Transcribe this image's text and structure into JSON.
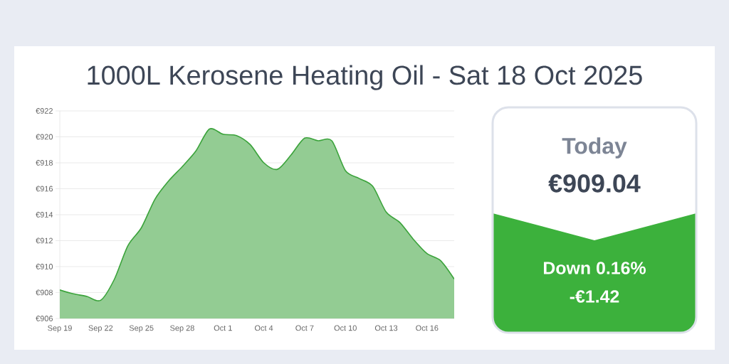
{
  "chart_data": [
    {
      "type": "area",
      "title": "1000L Kerosene Heating Oil - Sat 18 Oct 2025",
      "x": [
        "2025-09-19",
        "2025-09-20",
        "2025-09-21",
        "2025-09-22",
        "2025-09-23",
        "2025-09-24",
        "2025-09-25",
        "2025-09-26",
        "2025-09-27",
        "2025-09-28",
        "2025-09-29",
        "2025-09-30",
        "2025-10-01",
        "2025-10-02",
        "2025-10-03",
        "2025-10-04",
        "2025-10-05",
        "2025-10-06",
        "2025-10-07",
        "2025-10-08",
        "2025-10-09",
        "2025-10-10",
        "2025-10-11",
        "2025-10-12",
        "2025-10-13",
        "2025-10-14",
        "2025-10-15",
        "2025-10-16",
        "2025-10-17",
        "2025-10-18"
      ],
      "values": [
        908.2,
        907.9,
        907.7,
        907.4,
        909.0,
        911.6,
        913.0,
        915.2,
        916.6,
        917.7,
        918.9,
        920.6,
        920.2,
        920.1,
        919.4,
        918.0,
        917.5,
        918.6,
        919.9,
        919.7,
        919.7,
        917.4,
        916.8,
        916.2,
        914.2,
        913.4,
        912.1,
        911.0,
        910.46,
        909.04
      ],
      "color": "#3ba33b",
      "xlim": [
        "2025-09-19",
        "2025-10-18"
      ],
      "xticks": [
        {
          "value": "2025-09-19",
          "label": "Sep 19"
        },
        {
          "value": "2025-09-22",
          "label": "Sep 22"
        },
        {
          "value": "2025-09-25",
          "label": "Sep 25"
        },
        {
          "value": "2025-09-28",
          "label": "Sep 28"
        },
        {
          "value": "2025-10-01",
          "label": "Oct 1"
        },
        {
          "value": "2025-10-04",
          "label": "Oct 4"
        },
        {
          "value": "2025-10-07",
          "label": "Oct 7"
        },
        {
          "value": "2025-10-10",
          "label": "Oct 10"
        },
        {
          "value": "2025-10-13",
          "label": "Oct 13"
        },
        {
          "value": "2025-10-16",
          "label": "Oct 16"
        }
      ],
      "ylim": [
        906,
        922
      ],
      "yticks": [
        {
          "value": 906,
          "label": "€906"
        },
        {
          "value": 908,
          "label": "€908"
        },
        {
          "value": 910,
          "label": "€910"
        },
        {
          "value": 912,
          "label": "€912"
        },
        {
          "value": 914,
          "label": "€914"
        },
        {
          "value": 916,
          "label": "€916"
        },
        {
          "value": 918,
          "label": "€918"
        },
        {
          "value": 920,
          "label": "€920"
        },
        {
          "value": 922,
          "label": "€922"
        }
      ],
      "grid": "y"
    },
    {
      "type": "other",
      "title": "Today",
      "annotations": [
        "€909.04",
        "Down 0.16%",
        "-€1.42"
      ]
    }
  ]
}
